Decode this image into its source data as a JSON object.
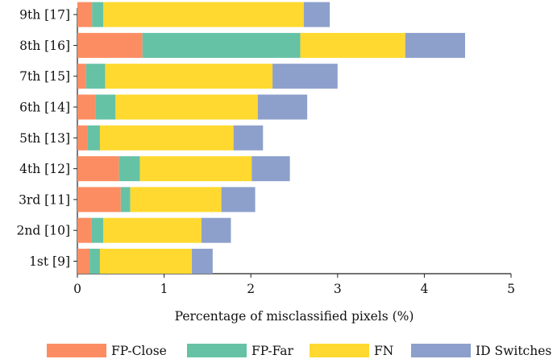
{
  "chart_data": {
    "type": "bar",
    "orientation": "horizontal",
    "stacked": true,
    "categories": [
      "1st [9]",
      "2nd [10]",
      "3rd [11]",
      "4th [12]",
      "5th [13]",
      "6th [14]",
      "7th [15]",
      "8th [16]",
      "9th [17]"
    ],
    "series": [
      {
        "name": "FP-Close",
        "color": "#fc8d62",
        "values": [
          0.14,
          0.16,
          0.5,
          0.48,
          0.12,
          0.21,
          0.1,
          0.75,
          0.17
        ]
      },
      {
        "name": "FP-Far",
        "color": "#66c2a5",
        "values": [
          0.12,
          0.14,
          0.11,
          0.24,
          0.14,
          0.23,
          0.22,
          1.82,
          0.13
        ]
      },
      {
        "name": "FN",
        "color": "#ffd92f",
        "values": [
          1.06,
          1.13,
          1.05,
          1.29,
          1.54,
          1.64,
          1.93,
          1.21,
          2.31
        ]
      },
      {
        "name": "ID Switches",
        "color": "#8da0cb",
        "values": [
          0.24,
          0.34,
          0.39,
          0.44,
          0.34,
          0.57,
          0.75,
          0.69,
          0.3
        ]
      }
    ],
    "xlabel": "Percentage of misclassified pixels (%)",
    "ylabel": "",
    "xlim": [
      0,
      5
    ],
    "xticks": [
      0,
      1,
      2,
      3,
      4,
      5
    ],
    "grid": false,
    "legend_position": "bottom"
  }
}
